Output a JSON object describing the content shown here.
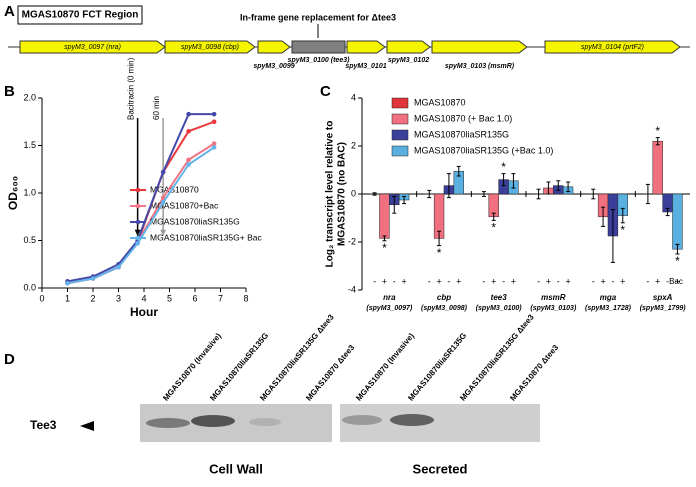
{
  "gene_map": {
    "label": "A",
    "title": "MGAS10870 FCT Region",
    "annotation": "In-frame gene replacement for Δtee3",
    "genes": [
      "spyM3_0097 (nra)",
      "spyM3_0098 (cbp)",
      "spyM3_0099",
      "spyM3_0100 (tee3)",
      "spyM3_0101",
      "spyM3_0102",
      "spyM3_0103 (msmR)",
      "spyM3_0104 (prtF2)"
    ]
  },
  "chart_data": [
    {
      "type": "line",
      "panel": "B",
      "xlabel": "Hour",
      "ylabel": "OD₆₀₀",
      "x": [
        1,
        2,
        3,
        3.75,
        4.75,
        5.75,
        6.75
      ],
      "series": [
        {
          "name": "MGAS10870",
          "color": "#e8383d",
          "values": [
            0.05,
            0.1,
            0.22,
            0.48,
            1.22,
            1.65,
            1.75
          ]
        },
        {
          "name": "MGAS10870+Bac",
          "color": "#f07585",
          "values": [
            0.05,
            0.1,
            0.22,
            0.48,
            0.95,
            1.35,
            1.52
          ]
        },
        {
          "name": "MGAS10870liaSR135G",
          "color": "#4349a8",
          "values": [
            0.07,
            0.12,
            0.25,
            0.5,
            1.22,
            1.83,
            1.83
          ]
        },
        {
          "name": "MGAS10870liaSR135G+ Bac",
          "color": "#62b4ea",
          "values": [
            0.05,
            0.1,
            0.22,
            0.47,
            0.9,
            1.3,
            1.48
          ]
        }
      ],
      "xlim": [
        0,
        8
      ],
      "xticks": [
        0,
        1,
        2,
        3,
        4,
        5,
        6,
        7,
        8
      ],
      "ylim": [
        0,
        2
      ],
      "yticks": [
        {
          "value": 0,
          "label": "0.0"
        },
        {
          "value": 0.5,
          "label": "0.5"
        },
        {
          "value": 1,
          "label": "1.0"
        },
        {
          "value": 1.5,
          "label": "1.5"
        },
        {
          "value": 2,
          "label": "2.0"
        }
      ],
      "annotations": [
        {
          "text": "Bacitracin (0 min)",
          "x": 3.75,
          "color": "#000000"
        },
        {
          "text": "60 min",
          "x": 4.75,
          "color": "#999999"
        }
      ]
    },
    {
      "type": "bar",
      "panel": "C",
      "ylabel": [
        "Log₂ transcript level relative to",
        "MGAS10870 (no BAC)"
      ],
      "categories": [
        "nra",
        "cbp",
        "tee3",
        "msmR",
        "mga",
        "spxA"
      ],
      "category_sublabels": [
        "(spyM3_0097)",
        "(spyM3_0098)",
        "(spyM3_0100)",
        "(spyM3_0103)",
        "(spyM3_1728)",
        "(spyM3_1799)"
      ],
      "series": [
        {
          "name": "MGAS10870",
          "color": "#e0343b",
          "values": [
            0,
            0,
            0,
            0,
            0,
            0
          ],
          "errors": [
            0.05,
            0.15,
            0.1,
            0.2,
            0.2,
            0.4
          ]
        },
        {
          "name": "MGAS10870 (+ Bac 1.0)",
          "color": "#f07080",
          "values": [
            -1.85,
            -1.85,
            -0.95,
            0.25,
            -0.95,
            2.2
          ],
          "errors": [
            0.1,
            0.3,
            0.15,
            0.25,
            0.4,
            0.15
          ]
        },
        {
          "name": "MGAS10870liaSR135G",
          "color": "#3a3f9a",
          "values": [
            -0.45,
            0.35,
            0.6,
            0.35,
            -1.75,
            -0.75
          ],
          "errors": [
            0.35,
            0.5,
            0.25,
            0.2,
            1.1,
            0.15
          ]
        },
        {
          "name": "MGAS10870liaSR135G (+Bac 1.0)",
          "color": "#5ab0e0",
          "values": [
            -0.25,
            0.95,
            0.55,
            0.3,
            -0.9,
            -2.3
          ],
          "errors": [
            0.15,
            0.2,
            0.3,
            0.2,
            0.3,
            0.2
          ]
        }
      ],
      "ylim": [
        -4,
        4
      ],
      "yticks": [
        -4,
        -2,
        0,
        2,
        4
      ],
      "treatment_labels": [
        "-",
        "+",
        "-",
        "+"
      ],
      "treatment_title": "Bac",
      "significance": [
        {
          "category": 0,
          "series": 1,
          "label": "*"
        },
        {
          "category": 1,
          "series": 1,
          "label": "*"
        },
        {
          "category": 2,
          "series": 1,
          "label": "*"
        },
        {
          "category": 2,
          "series": 2,
          "label": "*"
        },
        {
          "category": 4,
          "series": 3,
          "label": "*"
        },
        {
          "category": 5,
          "series": 1,
          "label": "*"
        },
        {
          "category": 5,
          "series": 3,
          "label": "*"
        }
      ]
    }
  ],
  "western_blot": {
    "label": "D",
    "lanes": [
      "MGAS10870 (Invasive)",
      "MGAS10870liaSR135G",
      "MGAS10870liaSR135G Δtee3",
      "MGAS10870 Δtee3",
      "MGAS10870 (Invasive)",
      "MGAS10870liaSR135G",
      "MGAS10870liaSR135G Δtee3",
      "MGAS10870 Δtee3"
    ],
    "band_label": "Tee3",
    "groups": [
      "Cell Wall",
      "Secreted"
    ]
  }
}
